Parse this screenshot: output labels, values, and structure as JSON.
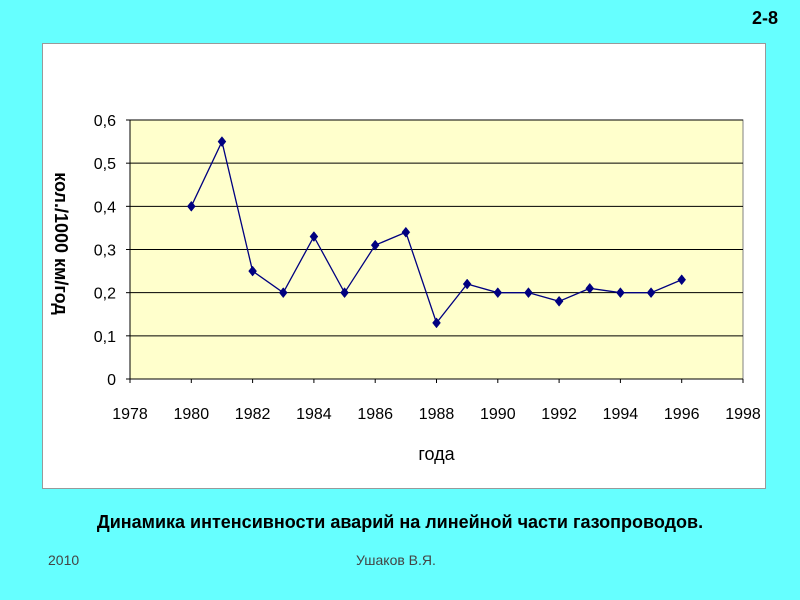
{
  "slide_number": "2-8",
  "caption": "Динамика интенсивности аварий на линейной части газопроводов.",
  "footer": {
    "year": "2010",
    "author": "Ушаков В.Я."
  },
  "colors": {
    "background": "#66FFFF",
    "plot_area": "#FFFFCC",
    "series": "#000080",
    "marker": "#000080"
  },
  "chart_data": {
    "type": "scatter",
    "xlabel": "года",
    "ylabel": "кол./1000 км/год",
    "xlim": [
      1978,
      1998
    ],
    "ylim": [
      0,
      0.6
    ],
    "x_ticks": [
      "1978",
      "1980",
      "1982",
      "1984",
      "1986",
      "1988",
      "1990",
      "1992",
      "1994",
      "1996",
      "1998"
    ],
    "y_ticks": [
      "0",
      "0,1",
      "0,2",
      "0,3",
      "0,4",
      "0,5",
      "0,6"
    ],
    "grid": "horizontal",
    "series": [
      {
        "x": [
          1980,
          1981,
          1982,
          1983,
          1984,
          1985,
          1986,
          1987,
          1988,
          1989,
          1990,
          1991,
          1992,
          1993,
          1994,
          1995,
          1996
        ],
        "y": [
          0.4,
          0.55,
          0.25,
          0.2,
          0.33,
          0.2,
          0.31,
          0.34,
          0.13,
          0.22,
          0.2,
          0.2,
          0.18,
          0.21,
          0.2,
          0.2,
          0.23
        ]
      }
    ]
  }
}
